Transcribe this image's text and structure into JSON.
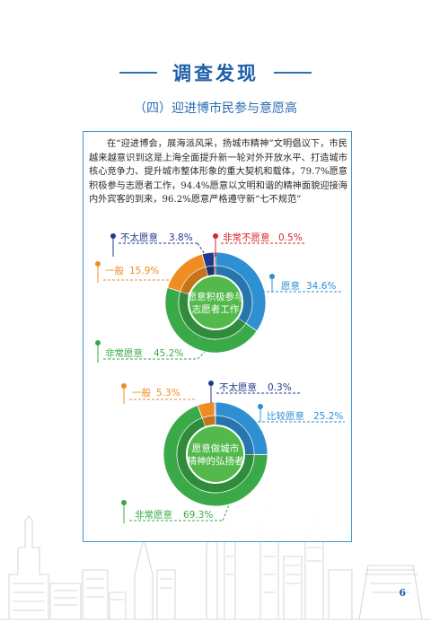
{
  "header": {
    "title": "调查发现",
    "subtitle": "（四）迎进博市民参与意愿高"
  },
  "intro": {
    "text": "在“迎进博会，展海派风采，扬城市精神”文明倡议下，市民越来越意识到这是上海全面提升新一轮对外开放水平、打造城市核心竞争力、提升城市整体形象的重大契机和载体，79.7%愿意积极参与志愿者工作，94.4%愿意以文明和谐的精神面貌迎接海内外宾客的到来，96.2%愿意严格遵守新“七不规范”"
  },
  "colors": {
    "very_willing": "#3aaa48",
    "willing": "#2f8fd3",
    "general": "#f08d22",
    "not_very": "#1f3a8a",
    "very_unwilling": "#d7262b",
    "center": "#54b94c",
    "title_blue": "#1d5fa8",
    "frame": "#3f95d2"
  },
  "chart_data": [
    {
      "type": "pie",
      "variant": "donut",
      "center_label": [
        "愿意积极参与",
        "志愿者工作"
      ],
      "slices": [
        {
          "label": "愿意",
          "value": 34.6,
          "display": "34.6%",
          "color": "#2f8fd3"
        },
        {
          "label": "非常愿意",
          "value": 45.2,
          "display": "45.2%",
          "color": "#3aaa48"
        },
        {
          "label": "一般",
          "value": 15.9,
          "display": "15.9%",
          "color": "#f08d22"
        },
        {
          "label": "不太愿意",
          "value": 3.8,
          "display": "3.8%",
          "color": "#1f3a8a"
        },
        {
          "label": "非常不愿意",
          "value": 0.5,
          "display": "0.5%",
          "color": "#d7262b"
        }
      ]
    },
    {
      "type": "pie",
      "variant": "donut",
      "center_label": [
        "愿意做城市",
        "精神的弘扬者"
      ],
      "slices": [
        {
          "label": "比较愿意",
          "value": 25.2,
          "display": "25.2%",
          "color": "#2f8fd3"
        },
        {
          "label": "非常愿意",
          "value": 69.3,
          "display": "69.3%",
          "color": "#3aaa48"
        },
        {
          "label": "一般",
          "value": 5.3,
          "display": "5.3%",
          "color": "#f08d22"
        },
        {
          "label": "不太愿意",
          "value": 0.3,
          "display": "0.3%",
          "color": "#1f3a8a"
        }
      ]
    }
  ],
  "page": {
    "number": "6"
  }
}
